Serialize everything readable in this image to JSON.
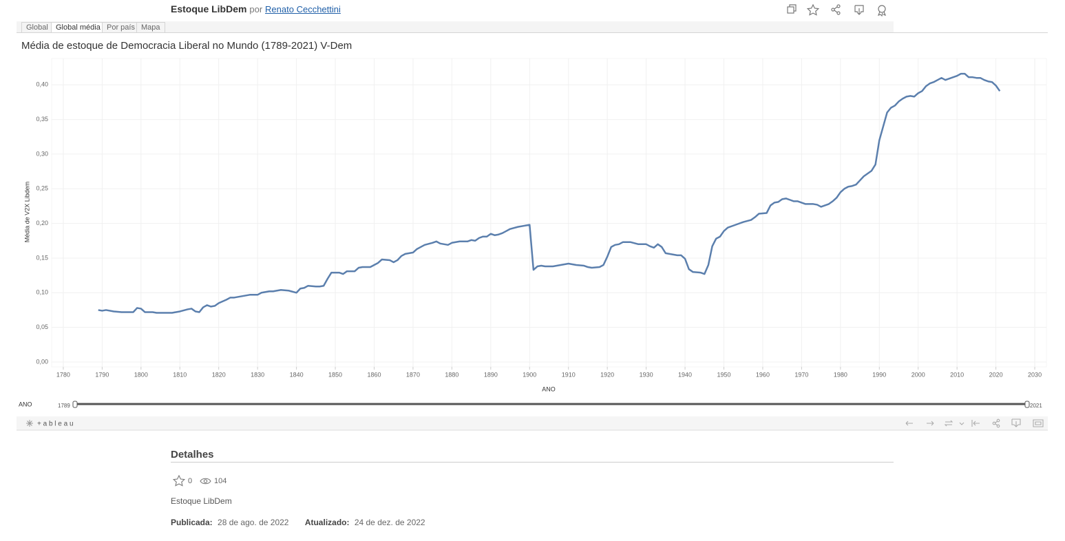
{
  "header": {
    "title": "Estoque LibDem",
    "by": "por",
    "author": "Renato Cecchettini"
  },
  "tabs": [
    "Global",
    "Global média",
    "Por país",
    "Mapa"
  ],
  "chart_data": {
    "type": "line",
    "title": "Média de estoque de Democracia Liberal no Mundo (1789-2021) V-Dem",
    "x_label": "ANO",
    "y_label": "Média de V2X Libdem",
    "x": [
      1789,
      1790,
      1791,
      1793,
      1795,
      1797,
      1798,
      1799,
      1800,
      1801,
      1803,
      1804,
      1807,
      1808,
      1809,
      1810,
      1812,
      1813,
      1814,
      1815,
      1816,
      1817,
      1818,
      1819,
      1820,
      1822,
      1823,
      1824,
      1826,
      1828,
      1830,
      1831,
      1833,
      1834,
      1836,
      1838,
      1840,
      1841,
      1842,
      1843,
      1845,
      1846,
      1847,
      1848,
      1849,
      1851,
      1852,
      1853,
      1855,
      1856,
      1857,
      1859,
      1860,
      1861,
      1862,
      1864,
      1865,
      1866,
      1867,
      1868,
      1870,
      1871,
      1872,
      1873,
      1875,
      1876,
      1877,
      1879,
      1880,
      1881,
      1882,
      1884,
      1885,
      1886,
      1887,
      1888,
      1889,
      1890,
      1891,
      1892,
      1893,
      1894,
      1895,
      1897,
      1899,
      1900,
      1901,
      1902,
      1903,
      1904,
      1906,
      1908,
      1910,
      1912,
      1914,
      1915,
      1916,
      1918,
      1919,
      1920,
      1921,
      1922,
      1923,
      1924,
      1926,
      1928,
      1930,
      1931,
      1932,
      1933,
      1934,
      1935,
      1937,
      1938,
      1939,
      1940,
      1941,
      1942,
      1944,
      1945,
      1946,
      1947,
      1948,
      1949,
      1950,
      1951,
      1953,
      1955,
      1957,
      1958,
      1959,
      1961,
      1962,
      1963,
      1964,
      1965,
      1966,
      1967,
      1968,
      1969,
      1970,
      1971,
      1973,
      1974,
      1975,
      1976,
      1977,
      1978,
      1979,
      1980,
      1981,
      1982,
      1983,
      1984,
      1985,
      1986,
      1987,
      1988,
      1989,
      1990,
      1991,
      1992,
      1993,
      1994,
      1995,
      1996,
      1997,
      1998,
      1999,
      2000,
      2001,
      2002,
      2003,
      2004,
      2005,
      2006,
      2007,
      2008,
      2009,
      2010,
      2011,
      2012,
      2013,
      2014,
      2015,
      2016,
      2017,
      2018,
      2019,
      2020,
      2021
    ],
    "values": [
      0.075,
      0.074,
      0.075,
      0.073,
      0.072,
      0.072,
      0.072,
      0.078,
      0.077,
      0.072,
      0.072,
      0.071,
      0.071,
      0.071,
      0.072,
      0.073,
      0.076,
      0.077,
      0.073,
      0.072,
      0.079,
      0.082,
      0.08,
      0.081,
      0.085,
      0.09,
      0.093,
      0.093,
      0.095,
      0.097,
      0.097,
      0.1,
      0.102,
      0.102,
      0.104,
      0.103,
      0.1,
      0.106,
      0.107,
      0.11,
      0.109,
      0.109,
      0.11,
      0.12,
      0.129,
      0.129,
      0.127,
      0.131,
      0.131,
      0.136,
      0.137,
      0.137,
      0.14,
      0.143,
      0.148,
      0.147,
      0.144,
      0.147,
      0.153,
      0.156,
      0.158,
      0.163,
      0.166,
      0.169,
      0.172,
      0.174,
      0.171,
      0.169,
      0.172,
      0.173,
      0.174,
      0.174,
      0.176,
      0.175,
      0.179,
      0.181,
      0.181,
      0.185,
      0.183,
      0.184,
      0.186,
      0.189,
      0.192,
      0.195,
      0.197,
      0.198,
      0.133,
      0.138,
      0.139,
      0.138,
      0.138,
      0.14,
      0.142,
      0.14,
      0.139,
      0.137,
      0.136,
      0.137,
      0.14,
      0.152,
      0.166,
      0.169,
      0.17,
      0.173,
      0.173,
      0.17,
      0.17,
      0.167,
      0.165,
      0.17,
      0.166,
      0.157,
      0.155,
      0.154,
      0.154,
      0.149,
      0.134,
      0.13,
      0.129,
      0.127,
      0.14,
      0.167,
      0.178,
      0.181,
      0.189,
      0.194,
      0.198,
      0.202,
      0.205,
      0.209,
      0.214,
      0.215,
      0.226,
      0.23,
      0.231,
      0.235,
      0.236,
      0.234,
      0.232,
      0.232,
      0.23,
      0.228,
      0.228,
      0.227,
      0.224,
      0.226,
      0.228,
      0.232,
      0.237,
      0.245,
      0.25,
      0.253,
      0.254,
      0.256,
      0.262,
      0.268,
      0.272,
      0.276,
      0.285,
      0.32,
      0.34,
      0.36,
      0.367,
      0.37,
      0.376,
      0.38,
      0.383,
      0.384,
      0.383,
      0.388,
      0.391,
      0.398,
      0.402,
      0.404,
      0.407,
      0.41,
      0.407,
      0.409,
      0.411,
      0.413,
      0.416,
      0.416,
      0.411,
      0.411,
      0.41,
      0.41,
      0.407,
      0.405,
      0.404,
      0.399,
      0.391
    ],
    "color": "#5b7fad",
    "xlim": [
      1777,
      2033
    ],
    "xticks": [
      1780,
      1790,
      1800,
      1810,
      1820,
      1830,
      1840,
      1850,
      1860,
      1870,
      1880,
      1890,
      1900,
      1910,
      1920,
      1930,
      1940,
      1950,
      1960,
      1970,
      1980,
      1990,
      2000,
      2010,
      2020,
      2030
    ],
    "ylim": [
      -0.007,
      0.438
    ],
    "yticks": [
      {
        "value": 0,
        "label": "0,00"
      },
      {
        "value": 0.05,
        "label": "0,05"
      },
      {
        "value": 0.1,
        "label": "0,10"
      },
      {
        "value": 0.15,
        "label": "0,15"
      },
      {
        "value": 0.2,
        "label": "0,20"
      },
      {
        "value": 0.25,
        "label": "0,25"
      },
      {
        "value": 0.3,
        "label": "0,30"
      },
      {
        "value": 0.35,
        "label": "0,35"
      },
      {
        "value": 0.4,
        "label": "0,40"
      }
    ],
    "grid": true
  },
  "filter": {
    "label": "ANO",
    "min": 1789,
    "max": 2021
  },
  "toolbar": {
    "logo": "+ a b l e a u"
  },
  "details": {
    "heading": "Detalhes",
    "favorites": 0,
    "views": 104,
    "description": "Estoque LibDem",
    "published_label": "Publicada:",
    "published": "28 de ago. de 2022",
    "updated_label": "Atualizado:",
    "updated": "24 de dez. de 2022"
  }
}
